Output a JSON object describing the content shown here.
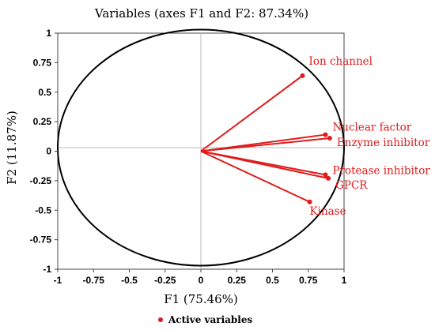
{
  "chart_data": {
    "type": "scatter",
    "title": "Variables (axes F1 and F2: 87.34%)",
    "xlabel": "F1 (75.46%)",
    "ylabel": "F2 (11.87%)",
    "xlim": [
      -1,
      1
    ],
    "ylim": [
      -1,
      1
    ],
    "x_ticks": [
      "-1",
      "-0.75",
      "-0.5",
      "-0.25",
      "0",
      "0.25",
      "0.5",
      "0.75",
      "1"
    ],
    "y_ticks": [
      "1",
      "0.75",
      "0.5",
      "0.25",
      "0",
      "-0.25",
      "-0.5",
      "-0.75",
      "-1"
    ],
    "series": [
      {
        "name": "Active variables",
        "color": "#e01b1b",
        "points": [
          {
            "label": "Ion channel",
            "x": 0.71,
            "y": 0.64
          },
          {
            "label": "Nuclear factor",
            "x": 0.87,
            "y": 0.14
          },
          {
            "label": "Enzyme inhibitor",
            "x": 0.9,
            "y": 0.11
          },
          {
            "label": "Protease inhibitor",
            "x": 0.87,
            "y": -0.2
          },
          {
            "label": "GPCR",
            "x": 0.89,
            "y": -0.23
          },
          {
            "label": "Kinase",
            "x": 0.76,
            "y": -0.43
          }
        ]
      }
    ],
    "correlation_circle": true,
    "grid": false,
    "legend_position": "bottom"
  }
}
